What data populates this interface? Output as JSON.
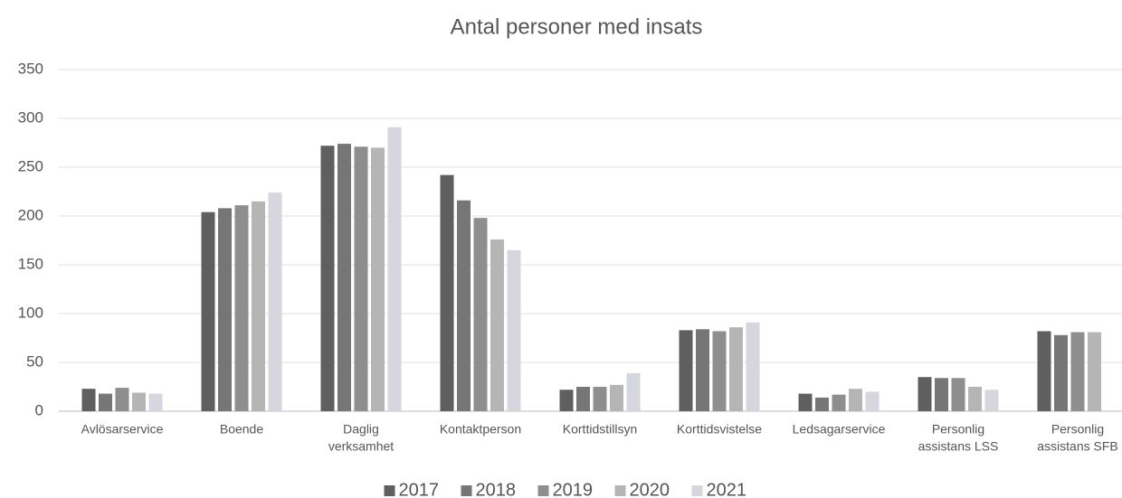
{
  "chart_data": {
    "type": "bar",
    "title": "Antal personer med insats",
    "categories": [
      [
        "Avlösarservice"
      ],
      [
        "Boende"
      ],
      [
        "Daglig",
        "verksamhet"
      ],
      [
        "Kontaktperson"
      ],
      [
        "Korttidstillsyn"
      ],
      [
        "Korttidsvistelse"
      ],
      [
        "Ledsagarservice"
      ],
      [
        "Personlig",
        "assistans LSS"
      ],
      [
        "Personlig",
        "assistans SFB"
      ]
    ],
    "series": [
      {
        "name": "2017",
        "color": "#5f5f5f",
        "values": [
          23,
          204,
          272,
          242,
          22,
          83,
          18,
          35,
          82
        ]
      },
      {
        "name": "2018",
        "color": "#767676",
        "values": [
          18,
          208,
          274,
          216,
          25,
          84,
          14,
          34,
          78
        ]
      },
      {
        "name": "2019",
        "color": "#8e8e8e",
        "values": [
          24,
          211,
          271,
          198,
          25,
          82,
          17,
          34,
          81
        ]
      },
      {
        "name": "2020",
        "color": "#b5b5b5",
        "values": [
          19,
          215,
          270,
          176,
          27,
          86,
          23,
          25,
          81
        ]
      },
      {
        "name": "2021",
        "color": "#d6d6de",
        "values": [
          18,
          224,
          291,
          165,
          39,
          91,
          20,
          22,
          null
        ]
      }
    ],
    "ylim": [
      0,
      350
    ],
    "yticks": [
      0,
      50,
      100,
      150,
      200,
      250,
      300,
      350
    ],
    "grid": true,
    "legend": "bottom"
  }
}
